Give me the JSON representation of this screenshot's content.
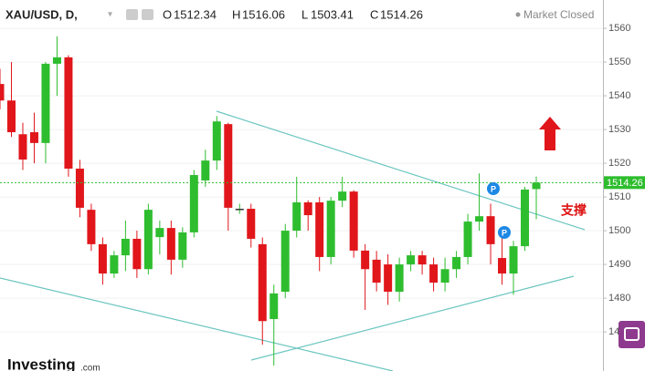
{
  "chart_data": {
    "type": "candlestick",
    "symbol": "XAU/USD, D,",
    "header_labels": {
      "open": "O",
      "high": "H",
      "low": "L",
      "close": "C"
    },
    "status": "Market Closed",
    "annotation": "支撑",
    "marker_text": "P",
    "logo": "Investing",
    "logo_suffix": ".com",
    "up_color": "#2ebd2e",
    "down_color": "#e0161b",
    "grid": true,
    "ylim": [
      1458.4,
      1568.4
    ],
    "yticks": [
      1470,
      1480,
      1490,
      1500,
      1510,
      1520,
      1530,
      1540,
      1550,
      1560
    ],
    "open": [
      1543.5,
      1538.6,
      1528.6,
      1529.2,
      1526,
      1549.5,
      1551.4,
      1518.4,
      1506.2,
      1496,
      1487.3,
      1492.7,
      1497.6,
      1488.6,
      1498.1,
      1500.8,
      1491.4,
      1499.5,
      1514.9,
      1520.8,
      1531.6,
      1506.5,
      1506.5,
      1496,
      1473.8,
      1481.9,
      1500,
      1508.4,
      1508.4,
      1492.2,
      1508.9,
      1511.6,
      1494.1,
      1491.4,
      1490,
      1481.9,
      1490,
      1492.7,
      1490,
      1484.6,
      1488.6,
      1492.2,
      1502.7,
      1504.3,
      1491.9,
      1487.3,
      1495.4,
      1512.34
    ],
    "high": [
      1548,
      1550,
      1532,
      1535,
      1550,
      1557.6,
      1552,
      1521,
      1508,
      1498,
      1494,
      1503,
      1500,
      1508,
      1503,
      1503,
      1501,
      1518,
      1524,
      1534,
      1532,
      1508,
      1508,
      1498,
      1484,
      1502,
      1516,
      1509,
      1510,
      1510,
      1516,
      1512,
      1496,
      1494,
      1493,
      1492,
      1494,
      1494,
      1492,
      1492,
      1494,
      1505,
      1517,
      1508,
      1500,
      1497,
      1513,
      1516.06
    ],
    "low": [
      1536,
      1527.8,
      1518,
      1520,
      1520,
      1540,
      1516,
      1504,
      1494,
      1484,
      1486,
      1488,
      1486,
      1487,
      1493,
      1487,
      1489,
      1498,
      1513,
      1518,
      1500,
      1505,
      1495,
      1466.2,
      1460,
      1480,
      1498,
      1500,
      1488,
      1490,
      1507,
      1492,
      1476.5,
      1482,
      1478,
      1479,
      1488,
      1487,
      1482,
      1482,
      1486,
      1490,
      1500,
      1490,
      1484,
      1481,
      1494,
      1503.41
    ],
    "close": [
      1538.6,
      1529.2,
      1521.1,
      1526,
      1549.5,
      1551.4,
      1518.4,
      1506.8,
      1496,
      1487.3,
      1492.7,
      1497.6,
      1488.6,
      1506.2,
      1500.8,
      1491.4,
      1499.5,
      1516.5,
      1520.8,
      1532.4,
      1506.8,
      1506.5,
      1497.6,
      1473.2,
      1481.4,
      1500,
      1508.4,
      1504.6,
      1492.2,
      1508.9,
      1511.6,
      1494.1,
      1488.6,
      1484.6,
      1481.9,
      1490,
      1492.7,
      1490,
      1484.6,
      1488.6,
      1492.2,
      1502.7,
      1504.3,
      1496,
      1487.3,
      1495.4,
      1512.2,
      1514.26
    ]
  }
}
